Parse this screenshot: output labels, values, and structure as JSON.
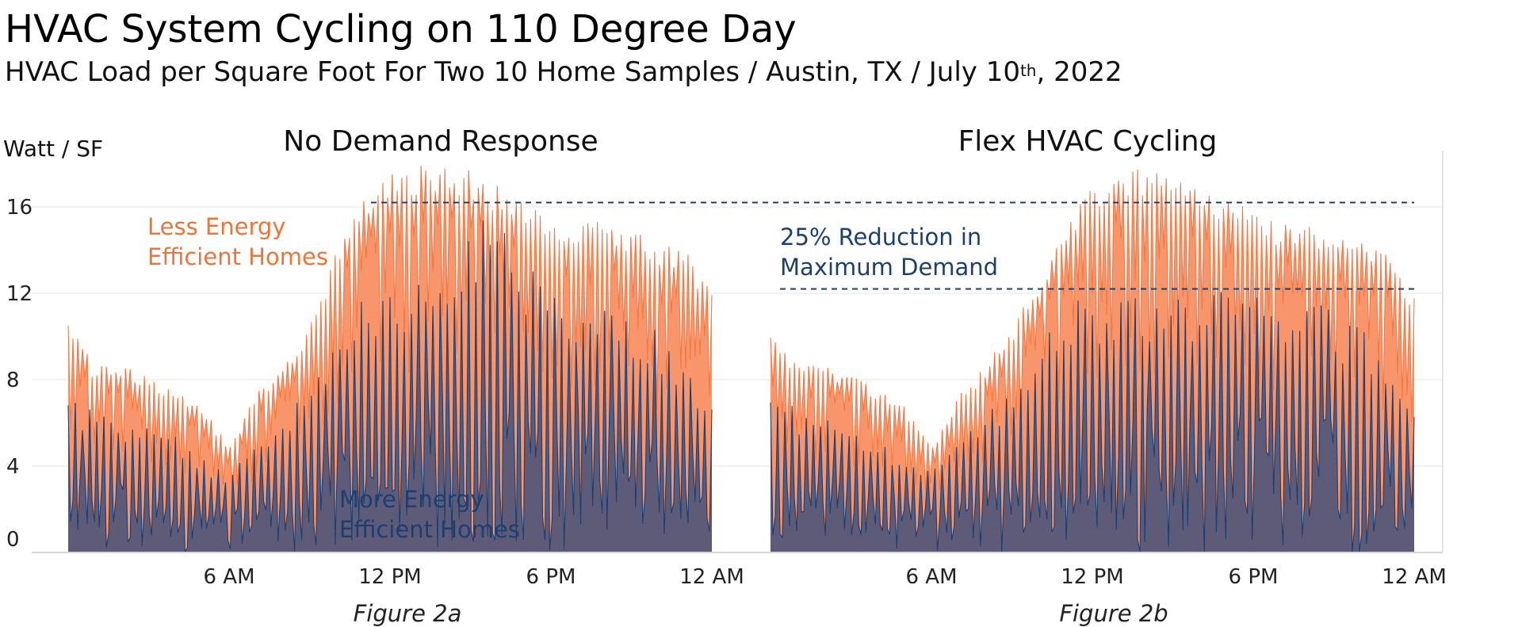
{
  "title": "HVAC System Cycling on 110 Degree Day",
  "subtitle_main": "HVAC Load per Square Foot For Two 10 Home Samples / Austin, TX / July 10",
  "subtitle_sup": "th",
  "subtitle_end": ", 2022",
  "colors": {
    "less_efficient": "#f9956a",
    "less_efficient_line": "#f07a45",
    "more_efficient": "#5e5b78",
    "more_efficient_line": "#1c3f72",
    "reference_line": "#1c3f72",
    "grid": "#e6e6e6"
  },
  "chart_data": {
    "type": "area",
    "ylabel": "Watt / SF",
    "ylim": [
      0,
      18
    ],
    "yticks": [
      "0",
      "4",
      "8",
      "12",
      "16"
    ],
    "x_tick_labels": [
      "6 AM",
      "12 PM",
      "6 PM",
      "12 AM"
    ],
    "x_unit": "hour of day",
    "x_range": [
      0,
      24
    ],
    "grid": true,
    "panels": [
      {
        "title": "No Demand Response",
        "figure_label": "Figure 2a",
        "series": [
          {
            "name": "Less Energy Efficient Homes",
            "label_line1": "Less Energy",
            "label_line2": "Efficient Homes",
            "x": [
              0,
              1,
              2,
              3,
              4,
              5,
              6,
              7,
              8,
              9,
              10,
              11,
              12,
              13,
              14,
              15,
              16,
              17,
              18,
              19,
              20,
              21,
              22,
              23,
              24
            ],
            "peaks": [
              10.8,
              8.6,
              8.8,
              8.2,
              7.6,
              6.8,
              5.0,
              7.4,
              8.6,
              10.5,
              14.0,
              16.8,
              17.8,
              18.0,
              18.0,
              17.8,
              17.0,
              16.2,
              15.8,
              15.2,
              15.4,
              15.0,
              14.5,
              14.0,
              12.0
            ]
          },
          {
            "name": "More Energy Efficient Homes",
            "label_line1": "More Energy",
            "label_line2": "Efficient Homes",
            "x": [
              0,
              1,
              2,
              3,
              4,
              5,
              6,
              7,
              8,
              9,
              10,
              11,
              12,
              13,
              14,
              15,
              16,
              17,
              18,
              19,
              20,
              21,
              22,
              23,
              24
            ],
            "peaks": [
              7.0,
              6.8,
              6.2,
              6.0,
              5.4,
              4.4,
              3.8,
              5.0,
              6.4,
              7.4,
              9.6,
              11.8,
              12.0,
              12.8,
              13.6,
              15.0,
              16.0,
              13.8,
              12.6,
              11.8,
              12.6,
              11.2,
              10.4,
              9.2,
              7.0
            ]
          }
        ]
      },
      {
        "title": "Flex HVAC Cycling",
        "figure_label": "Figure 2b",
        "annotation_line1": "25% Reduction in",
        "annotation_line2": "Maximum Demand",
        "reference_lines": [
          16.2,
          12.2
        ],
        "series": [
          {
            "name": "Less Energy Efficient Homes",
            "x": [
              0,
              1,
              2,
              3,
              4,
              5,
              6,
              7,
              8,
              9,
              10,
              11,
              12,
              13,
              14,
              15,
              16,
              17,
              18,
              19,
              20,
              21,
              22,
              23,
              24
            ],
            "peaks": [
              10.8,
              8.6,
              8.8,
              8.2,
              7.6,
              6.8,
              5.0,
              7.4,
              8.6,
              10.5,
              12.6,
              15.2,
              17.0,
              17.8,
              18.0,
              17.8,
              17.2,
              16.6,
              16.0,
              15.4,
              15.4,
              14.8,
              14.4,
              13.8,
              12.0
            ]
          },
          {
            "name": "More Energy Efficient Homes",
            "x": [
              0,
              1,
              2,
              3,
              4,
              5,
              6,
              7,
              8,
              9,
              10,
              11,
              12,
              13,
              14,
              15,
              16,
              17,
              18,
              19,
              20,
              21,
              22,
              23,
              24
            ],
            "peaks": [
              7.0,
              6.8,
              6.2,
              6.0,
              5.4,
              4.4,
              3.8,
              5.0,
              6.4,
              7.4,
              9.6,
              11.4,
              12.0,
              12.2,
              12.2,
              12.2,
              12.2,
              12.2,
              12.2,
              11.8,
              12.0,
              11.2,
              10.4,
              9.2,
              7.0
            ]
          }
        ]
      }
    ]
  }
}
